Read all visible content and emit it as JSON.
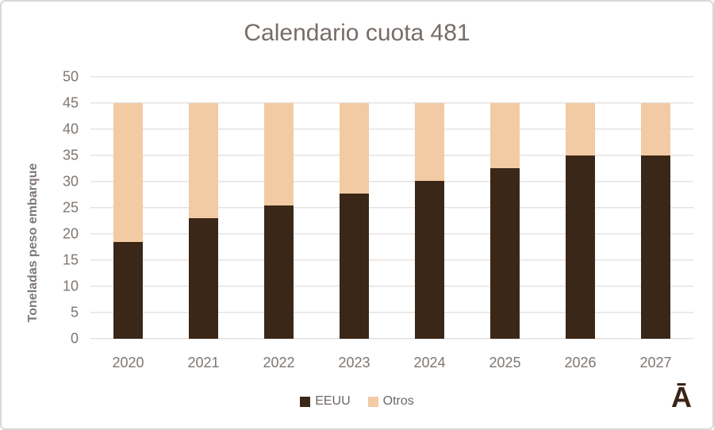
{
  "chart": {
    "watermark_glyph": "Ā",
    "colors": {
      "eeuu": "#3b2717",
      "otros": "#f2caa3",
      "title_text": "#766d69",
      "axis_text": "#7e7671",
      "gridline": "#d9d6d4",
      "frame_border": "#dad7d6",
      "watermark": "#3a2415"
    }
  },
  "chart_data": {
    "type": "bar",
    "stacked": true,
    "title": "Calendario cuota 481",
    "xlabel": "",
    "ylabel": "Toneladas peso embarque",
    "categories": [
      "2020",
      "2021",
      "2022",
      "2023",
      "2024",
      "2025",
      "2026",
      "2027"
    ],
    "series": [
      {
        "name": "EEUU",
        "color": "#3b2717",
        "values": [
          18.5,
          23,
          25.4,
          27.8,
          30.2,
          32.6,
          35,
          35
        ]
      },
      {
        "name": "Otros",
        "color": "#f2caa3",
        "values": [
          26.5,
          22,
          19.6,
          17.2,
          14.8,
          12.4,
          10,
          10
        ]
      }
    ],
    "stack_total": 45,
    "ylim": [
      0,
      50
    ],
    "yticks": [
      0,
      5,
      10,
      15,
      20,
      25,
      30,
      35,
      40,
      45,
      50
    ],
    "grid": true,
    "legend_position": "bottom"
  }
}
